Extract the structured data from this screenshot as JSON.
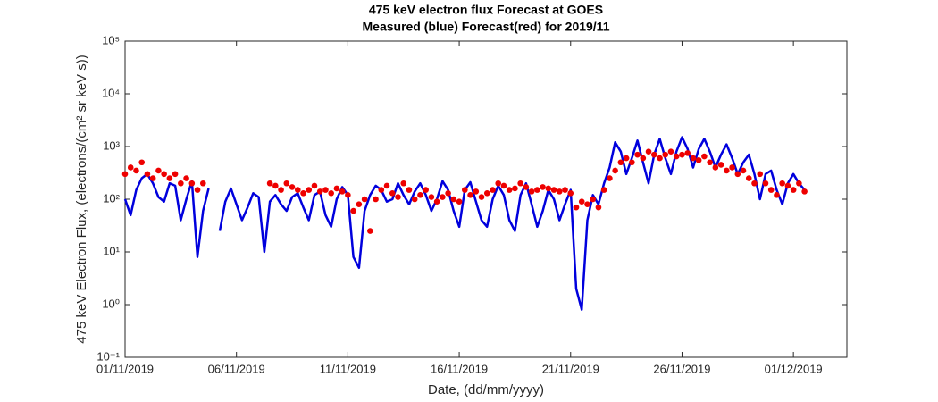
{
  "chart_data": {
    "type": "line",
    "title": "475 keV electron flux Forecast at GOES",
    "subtitle": "Measured (blue) Forecast(red) for 2019/11",
    "x_label": "Date, (dd/mm/yyyy)",
    "y_label": "475 keV Electron Flux, (electrons/(cm² sr keV s))",
    "yscale": "log",
    "xlim": [
      0,
      32.4
    ],
    "ylim": [
      0.1,
      100000
    ],
    "xticks": [
      {
        "value": 0,
        "label": "01/11/2019"
      },
      {
        "value": 5,
        "label": "06/11/2019"
      },
      {
        "value": 10,
        "label": "11/11/2019"
      },
      {
        "value": 15,
        "label": "16/11/2019"
      },
      {
        "value": 20,
        "label": "21/11/2019"
      },
      {
        "value": 25,
        "label": "26/11/2019"
      },
      {
        "value": 30,
        "label": "01/12/2019"
      }
    ],
    "yticks": [
      {
        "value": 0.1,
        "label": "10⁻¹"
      },
      {
        "value": 1,
        "label": "10⁰"
      },
      {
        "value": 10,
        "label": "10¹"
      },
      {
        "value": 100,
        "label": "10²"
      },
      {
        "value": 1000,
        "label": "10³"
      },
      {
        "value": 10000,
        "label": "10⁴"
      },
      {
        "value": 100000,
        "label": "10⁵"
      }
    ],
    "x": [
      0,
      0.25,
      0.5,
      0.75,
      1,
      1.25,
      1.5,
      1.75,
      2,
      2.25,
      2.5,
      2.75,
      3,
      3.25,
      3.5,
      3.75,
      4,
      4.25,
      4.5,
      4.75,
      5,
      5.25,
      5.5,
      5.75,
      6,
      6.25,
      6.5,
      6.75,
      7,
      7.25,
      7.5,
      7.75,
      8,
      8.25,
      8.5,
      8.75,
      9,
      9.25,
      9.5,
      9.75,
      10,
      10.25,
      10.5,
      10.75,
      11,
      11.25,
      11.5,
      11.75,
      12,
      12.25,
      12.5,
      12.75,
      13,
      13.25,
      13.5,
      13.75,
      14,
      14.25,
      14.5,
      14.75,
      15,
      15.25,
      15.5,
      15.75,
      16,
      16.25,
      16.5,
      16.75,
      17,
      17.25,
      17.5,
      17.75,
      18,
      18.25,
      18.5,
      18.75,
      19,
      19.25,
      19.5,
      19.75,
      20,
      20.25,
      20.5,
      20.75,
      21,
      21.25,
      21.5,
      21.75,
      22,
      22.25,
      22.5,
      22.75,
      23,
      23.25,
      23.5,
      23.75,
      24,
      24.25,
      24.5,
      24.75,
      25,
      25.25,
      25.5,
      25.75,
      26,
      26.25,
      26.5,
      26.75,
      27,
      27.25,
      27.5,
      27.75,
      28,
      28.25,
      28.5,
      28.75,
      29,
      29.25,
      29.5,
      29.75,
      30,
      30.25,
      30.5
    ],
    "series": [
      {
        "name": "Measured",
        "color": "#0000dd",
        "style": "line",
        "values": [
          100,
          50,
          150,
          250,
          300,
          200,
          110,
          90,
          200,
          180,
          40,
          100,
          220,
          8,
          60,
          160,
          null,
          25,
          90,
          160,
          80,
          40,
          70,
          130,
          110,
          10,
          90,
          120,
          80,
          60,
          110,
          130,
          70,
          40,
          120,
          140,
          50,
          30,
          100,
          170,
          120,
          8,
          5,
          60,
          120,
          180,
          150,
          90,
          100,
          200,
          120,
          80,
          140,
          200,
          120,
          60,
          100,
          220,
          150,
          60,
          30,
          150,
          210,
          90,
          40,
          30,
          100,
          180,
          120,
          40,
          25,
          120,
          200,
          80,
          30,
          60,
          150,
          100,
          40,
          80,
          150,
          2,
          0.8,
          40,
          120,
          80,
          200,
          400,
          1200,
          800,
          300,
          600,
          1300,
          500,
          200,
          700,
          1400,
          600,
          300,
          800,
          1500,
          900,
          400,
          900,
          1400,
          800,
          400,
          700,
          1100,
          600,
          300,
          500,
          700,
          300,
          100,
          300,
          350,
          150,
          80,
          200,
          300,
          200,
          150
        ]
      },
      {
        "name": "Forecast",
        "color": "#ee0000",
        "style": "dots",
        "values": [
          300,
          400,
          350,
          500,
          300,
          250,
          350,
          300,
          250,
          300,
          200,
          250,
          200,
          150,
          200,
          null,
          null,
          null,
          null,
          null,
          null,
          null,
          null,
          null,
          null,
          null,
          200,
          180,
          150,
          200,
          170,
          150,
          130,
          150,
          180,
          140,
          150,
          130,
          160,
          140,
          120,
          60,
          80,
          100,
          25,
          100,
          150,
          180,
          130,
          110,
          200,
          150,
          100,
          120,
          150,
          110,
          90,
          110,
          130,
          100,
          90,
          150,
          120,
          140,
          110,
          130,
          150,
          200,
          180,
          150,
          160,
          200,
          170,
          140,
          150,
          170,
          160,
          150,
          140,
          150,
          130,
          70,
          90,
          80,
          100,
          70,
          150,
          250,
          350,
          500,
          600,
          500,
          700,
          600,
          800,
          700,
          600,
          700,
          800,
          650,
          700,
          750,
          600,
          550,
          650,
          500,
          400,
          450,
          350,
          400,
          300,
          350,
          250,
          200,
          300,
          200,
          150,
          120,
          200,
          180,
          150,
          200,
          140
        ]
      }
    ]
  }
}
